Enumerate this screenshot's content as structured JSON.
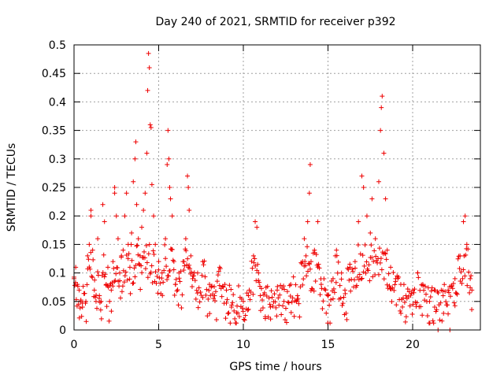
{
  "chart_data": {
    "type": "scatter",
    "title": "Day 240 of 2021, SRMTID for receiver p392",
    "xlabel": "GPS time / hours",
    "ylabel": "SRMTID / TECUs",
    "xlim": [
      0,
      24
    ],
    "ylim": [
      0,
      0.5
    ],
    "xticks": [
      0,
      5,
      10,
      15,
      20
    ],
    "yticks": [
      0,
      0.05,
      0.1,
      0.15,
      0.2,
      0.25,
      0.3,
      0.35,
      0.4,
      0.45,
      0.5
    ],
    "xtick_labels": [
      "0",
      "5",
      "10",
      "15",
      "20"
    ],
    "ytick_labels": [
      "0",
      "0.05",
      "0.1",
      "0.15",
      "0.2",
      "0.25",
      "0.3",
      "0.35",
      "0.4",
      "0.45",
      "0.5"
    ],
    "grid": true,
    "marker": "+",
    "series_color": "#ee0000",
    "data_range": [
      0,
      23.5
    ],
    "estimated_points": [
      [
        0.0,
        0.09
      ],
      [
        0.1,
        0.11
      ],
      [
        0.2,
        0.08
      ],
      [
        0.3,
        0.07
      ],
      [
        0.4,
        0.05
      ],
      [
        0.5,
        0.04
      ],
      [
        0.7,
        0.05
      ],
      [
        0.8,
        0.13
      ],
      [
        0.9,
        0.15
      ],
      [
        1.0,
        0.2
      ],
      [
        1.0,
        0.21
      ],
      [
        1.1,
        0.14
      ],
      [
        1.2,
        0.07
      ],
      [
        1.3,
        0.05
      ],
      [
        1.4,
        0.16
      ],
      [
        1.5,
        0.06
      ],
      [
        1.6,
        0.05
      ],
      [
        1.7,
        0.22
      ],
      [
        1.8,
        0.19
      ],
      [
        1.9,
        0.08
      ],
      [
        2.0,
        0.11
      ],
      [
        2.1,
        0.05
      ],
      [
        2.2,
        0.07
      ],
      [
        2.3,
        0.12
      ],
      [
        2.4,
        0.25
      ],
      [
        2.4,
        0.24
      ],
      [
        2.5,
        0.2
      ],
      [
        2.6,
        0.16
      ],
      [
        2.7,
        0.1
      ],
      [
        2.8,
        0.13
      ],
      [
        2.9,
        0.14
      ],
      [
        3.0,
        0.2
      ],
      [
        3.1,
        0.24
      ],
      [
        3.2,
        0.15
      ],
      [
        3.3,
        0.11
      ],
      [
        3.4,
        0.17
      ],
      [
        3.5,
        0.26
      ],
      [
        3.6,
        0.3
      ],
      [
        3.65,
        0.33
      ],
      [
        3.7,
        0.22
      ],
      [
        3.8,
        0.16
      ],
      [
        3.9,
        0.13
      ],
      [
        4.0,
        0.18
      ],
      [
        4.1,
        0.21
      ],
      [
        4.2,
        0.24
      ],
      [
        4.3,
        0.31
      ],
      [
        4.35,
        0.42
      ],
      [
        4.4,
        0.485
      ],
      [
        4.45,
        0.46
      ],
      [
        4.5,
        0.36
      ],
      [
        4.55,
        0.355
      ],
      [
        4.6,
        0.255
      ],
      [
        4.7,
        0.2
      ],
      [
        4.8,
        0.15
      ],
      [
        5.0,
        0.12
      ],
      [
        5.2,
        0.1
      ],
      [
        5.4,
        0.16
      ],
      [
        5.5,
        0.29
      ],
      [
        5.55,
        0.35
      ],
      [
        5.6,
        0.3
      ],
      [
        5.65,
        0.25
      ],
      [
        5.7,
        0.23
      ],
      [
        5.8,
        0.2
      ],
      [
        5.9,
        0.12
      ],
      [
        6.0,
        0.08
      ],
      [
        6.2,
        0.1
      ],
      [
        6.5,
        0.12
      ],
      [
        6.6,
        0.16
      ],
      [
        6.7,
        0.27
      ],
      [
        6.75,
        0.25
      ],
      [
        6.8,
        0.21
      ],
      [
        6.9,
        0.13
      ],
      [
        7.0,
        0.09
      ],
      [
        7.3,
        0.1
      ],
      [
        7.6,
        0.12
      ],
      [
        8.0,
        0.08
      ],
      [
        8.3,
        0.06
      ],
      [
        8.6,
        0.11
      ],
      [
        9.0,
        0.07
      ],
      [
        9.3,
        0.04
      ],
      [
        9.6,
        0.03
      ],
      [
        10.0,
        0.05
      ],
      [
        10.3,
        0.06
      ],
      [
        10.6,
        0.13
      ],
      [
        10.7,
        0.19
      ],
      [
        10.8,
        0.18
      ],
      [
        10.9,
        0.1
      ],
      [
        11.0,
        0.06
      ],
      [
        11.3,
        0.02
      ],
      [
        11.6,
        0.04
      ],
      [
        12.0,
        0.07
      ],
      [
        12.4,
        0.05
      ],
      [
        12.8,
        0.08
      ],
      [
        13.2,
        0.06
      ],
      [
        13.5,
        0.12
      ],
      [
        13.6,
        0.16
      ],
      [
        13.7,
        0.13
      ],
      [
        13.8,
        0.19
      ],
      [
        13.9,
        0.24
      ],
      [
        13.95,
        0.29
      ],
      [
        14.0,
        0.12
      ],
      [
        14.2,
        0.14
      ],
      [
        14.4,
        0.19
      ],
      [
        14.6,
        0.08
      ],
      [
        15.0,
        0.06
      ],
      [
        15.3,
        0.09
      ],
      [
        15.5,
        0.14
      ],
      [
        15.8,
        0.1
      ],
      [
        16.0,
        0.07
      ],
      [
        16.3,
        0.11
      ],
      [
        16.6,
        0.12
      ],
      [
        16.8,
        0.19
      ],
      [
        17.0,
        0.27
      ],
      [
        17.1,
        0.25
      ],
      [
        17.3,
        0.2
      ],
      [
        17.5,
        0.17
      ],
      [
        17.6,
        0.23
      ],
      [
        17.8,
        0.16
      ],
      [
        18.0,
        0.26
      ],
      [
        18.1,
        0.35
      ],
      [
        18.15,
        0.39
      ],
      [
        18.2,
        0.41
      ],
      [
        18.3,
        0.31
      ],
      [
        18.4,
        0.23
      ],
      [
        18.5,
        0.14
      ],
      [
        18.7,
        0.11
      ],
      [
        19.0,
        0.09
      ],
      [
        19.3,
        0.08
      ],
      [
        19.6,
        0.06
      ],
      [
        20.0,
        0.07
      ],
      [
        20.3,
        0.1
      ],
      [
        20.6,
        0.08
      ],
      [
        21.0,
        0.05
      ],
      [
        21.3,
        0.04
      ],
      [
        21.5,
        0.0
      ],
      [
        21.8,
        0.06
      ],
      [
        22.1,
        0.07
      ],
      [
        22.2,
        0.0
      ],
      [
        22.5,
        0.09
      ],
      [
        22.8,
        0.13
      ],
      [
        23.0,
        0.19
      ],
      [
        23.1,
        0.2
      ],
      [
        23.2,
        0.15
      ],
      [
        23.4,
        0.09
      ],
      [
        23.5,
        0.07
      ]
    ]
  }
}
